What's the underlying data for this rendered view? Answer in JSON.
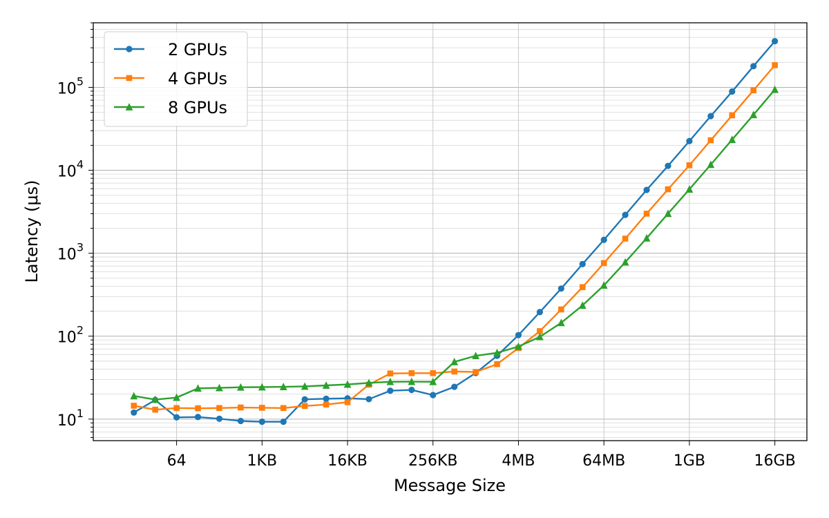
{
  "chart_data": {
    "type": "line",
    "xlabel": "Message Size",
    "ylabel": "Latency (μs)",
    "xscale": "log2",
    "yscale": "log10",
    "x": [
      "16",
      "32",
      "64",
      "128",
      "256",
      "512",
      "1KB",
      "2KB",
      "4KB",
      "8KB",
      "16KB",
      "32KB",
      "64KB",
      "128KB",
      "256KB",
      "512KB",
      "1MB",
      "2MB",
      "4MB",
      "8MB",
      "16MB",
      "32MB",
      "64MB",
      "128MB",
      "256MB",
      "512MB",
      "1GB",
      "2GB",
      "4GB",
      "8GB",
      "16GB"
    ],
    "x_ticks": [
      "64",
      "1KB",
      "16KB",
      "256KB",
      "4MB",
      "64MB",
      "1GB",
      "16GB"
    ],
    "y_ticks": [
      10,
      100,
      1000,
      10000,
      100000
    ],
    "ylim": [
      5.5,
      600000
    ],
    "grid": true,
    "legend_position": "top-left",
    "series": [
      {
        "name": "2 GPUs",
        "color": "#1f77b4",
        "marker": "circle",
        "values": [
          12,
          17,
          10.5,
          10.6,
          10.1,
          9.5,
          9.3,
          9.3,
          17.3,
          17.6,
          17.8,
          17.4,
          22,
          22.5,
          19.5,
          24.5,
          36,
          58,
          103,
          195,
          375,
          740,
          1450,
          2900,
          5800,
          11300,
          22500,
          45000,
          89000,
          180000,
          360000
        ]
      },
      {
        "name": "4 GPUs",
        "color": "#ff7f0e",
        "marker": "square",
        "values": [
          14.5,
          13,
          13.6,
          13.5,
          13.6,
          13.8,
          13.7,
          13.6,
          14.4,
          15,
          16,
          26,
          35.5,
          35.8,
          35.8,
          37.5,
          37,
          46,
          72,
          115,
          210,
          390,
          760,
          1500,
          3000,
          5900,
          11500,
          23000,
          46000,
          92000,
          185000
        ]
      },
      {
        "name": "8 GPUs",
        "color": "#2ca02c",
        "marker": "triangle",
        "values": [
          19,
          17.2,
          18.2,
          23.5,
          23.8,
          24.2,
          24.3,
          24.5,
          24.8,
          25.5,
          26.2,
          27.3,
          28.2,
          28.3,
          28.2,
          49,
          58,
          63,
          75,
          98,
          145,
          235,
          410,
          780,
          1520,
          3000,
          5900,
          11700,
          23400,
          46700,
          94000
        ]
      }
    ]
  }
}
